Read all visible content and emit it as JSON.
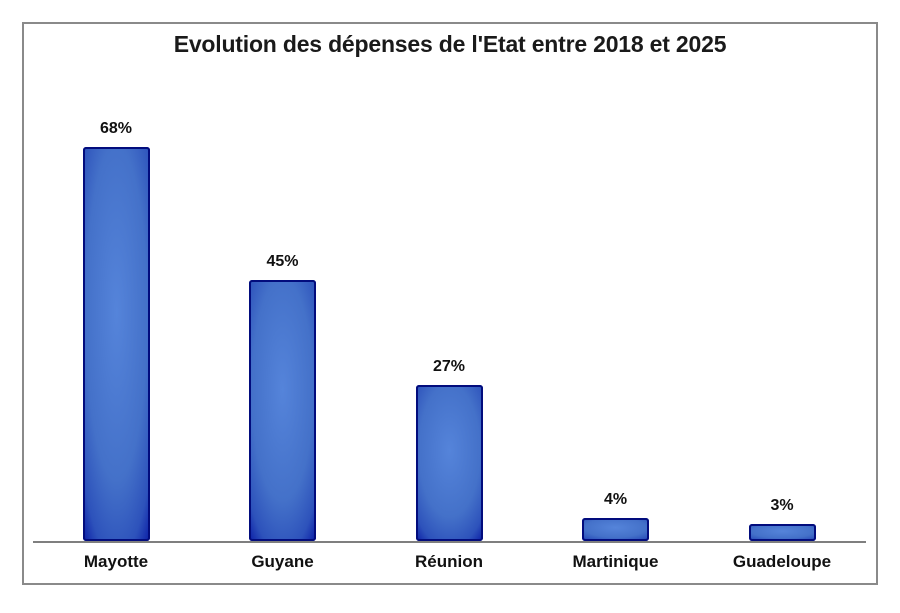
{
  "title": "Evolution des dépenses de l'Etat entre 2018 et 2025",
  "chart_data": {
    "type": "bar",
    "title": "Evolution des dépenses de l'Etat entre 2018 et 2025",
    "categories": [
      "Mayotte",
      "Guyane",
      "Réunion",
      "Martinique",
      "Guadeloupe"
    ],
    "values": [
      68,
      45,
      27,
      4,
      3
    ],
    "value_labels": [
      "68%",
      "45%",
      "27%",
      "4%",
      "3%"
    ],
    "xlabel": "",
    "ylabel": "",
    "ylim": [
      0,
      70
    ],
    "grid": false,
    "legend": "none",
    "y_axis_visible": false,
    "x_axis_visible": true,
    "colors": {
      "bar_fill": "#4471C9",
      "bar_border": "#020C7D",
      "axis_line": "#7F7F7F",
      "frame_border": "#8A8A8A",
      "text": "#111111",
      "background": "#FFFFFF"
    }
  }
}
